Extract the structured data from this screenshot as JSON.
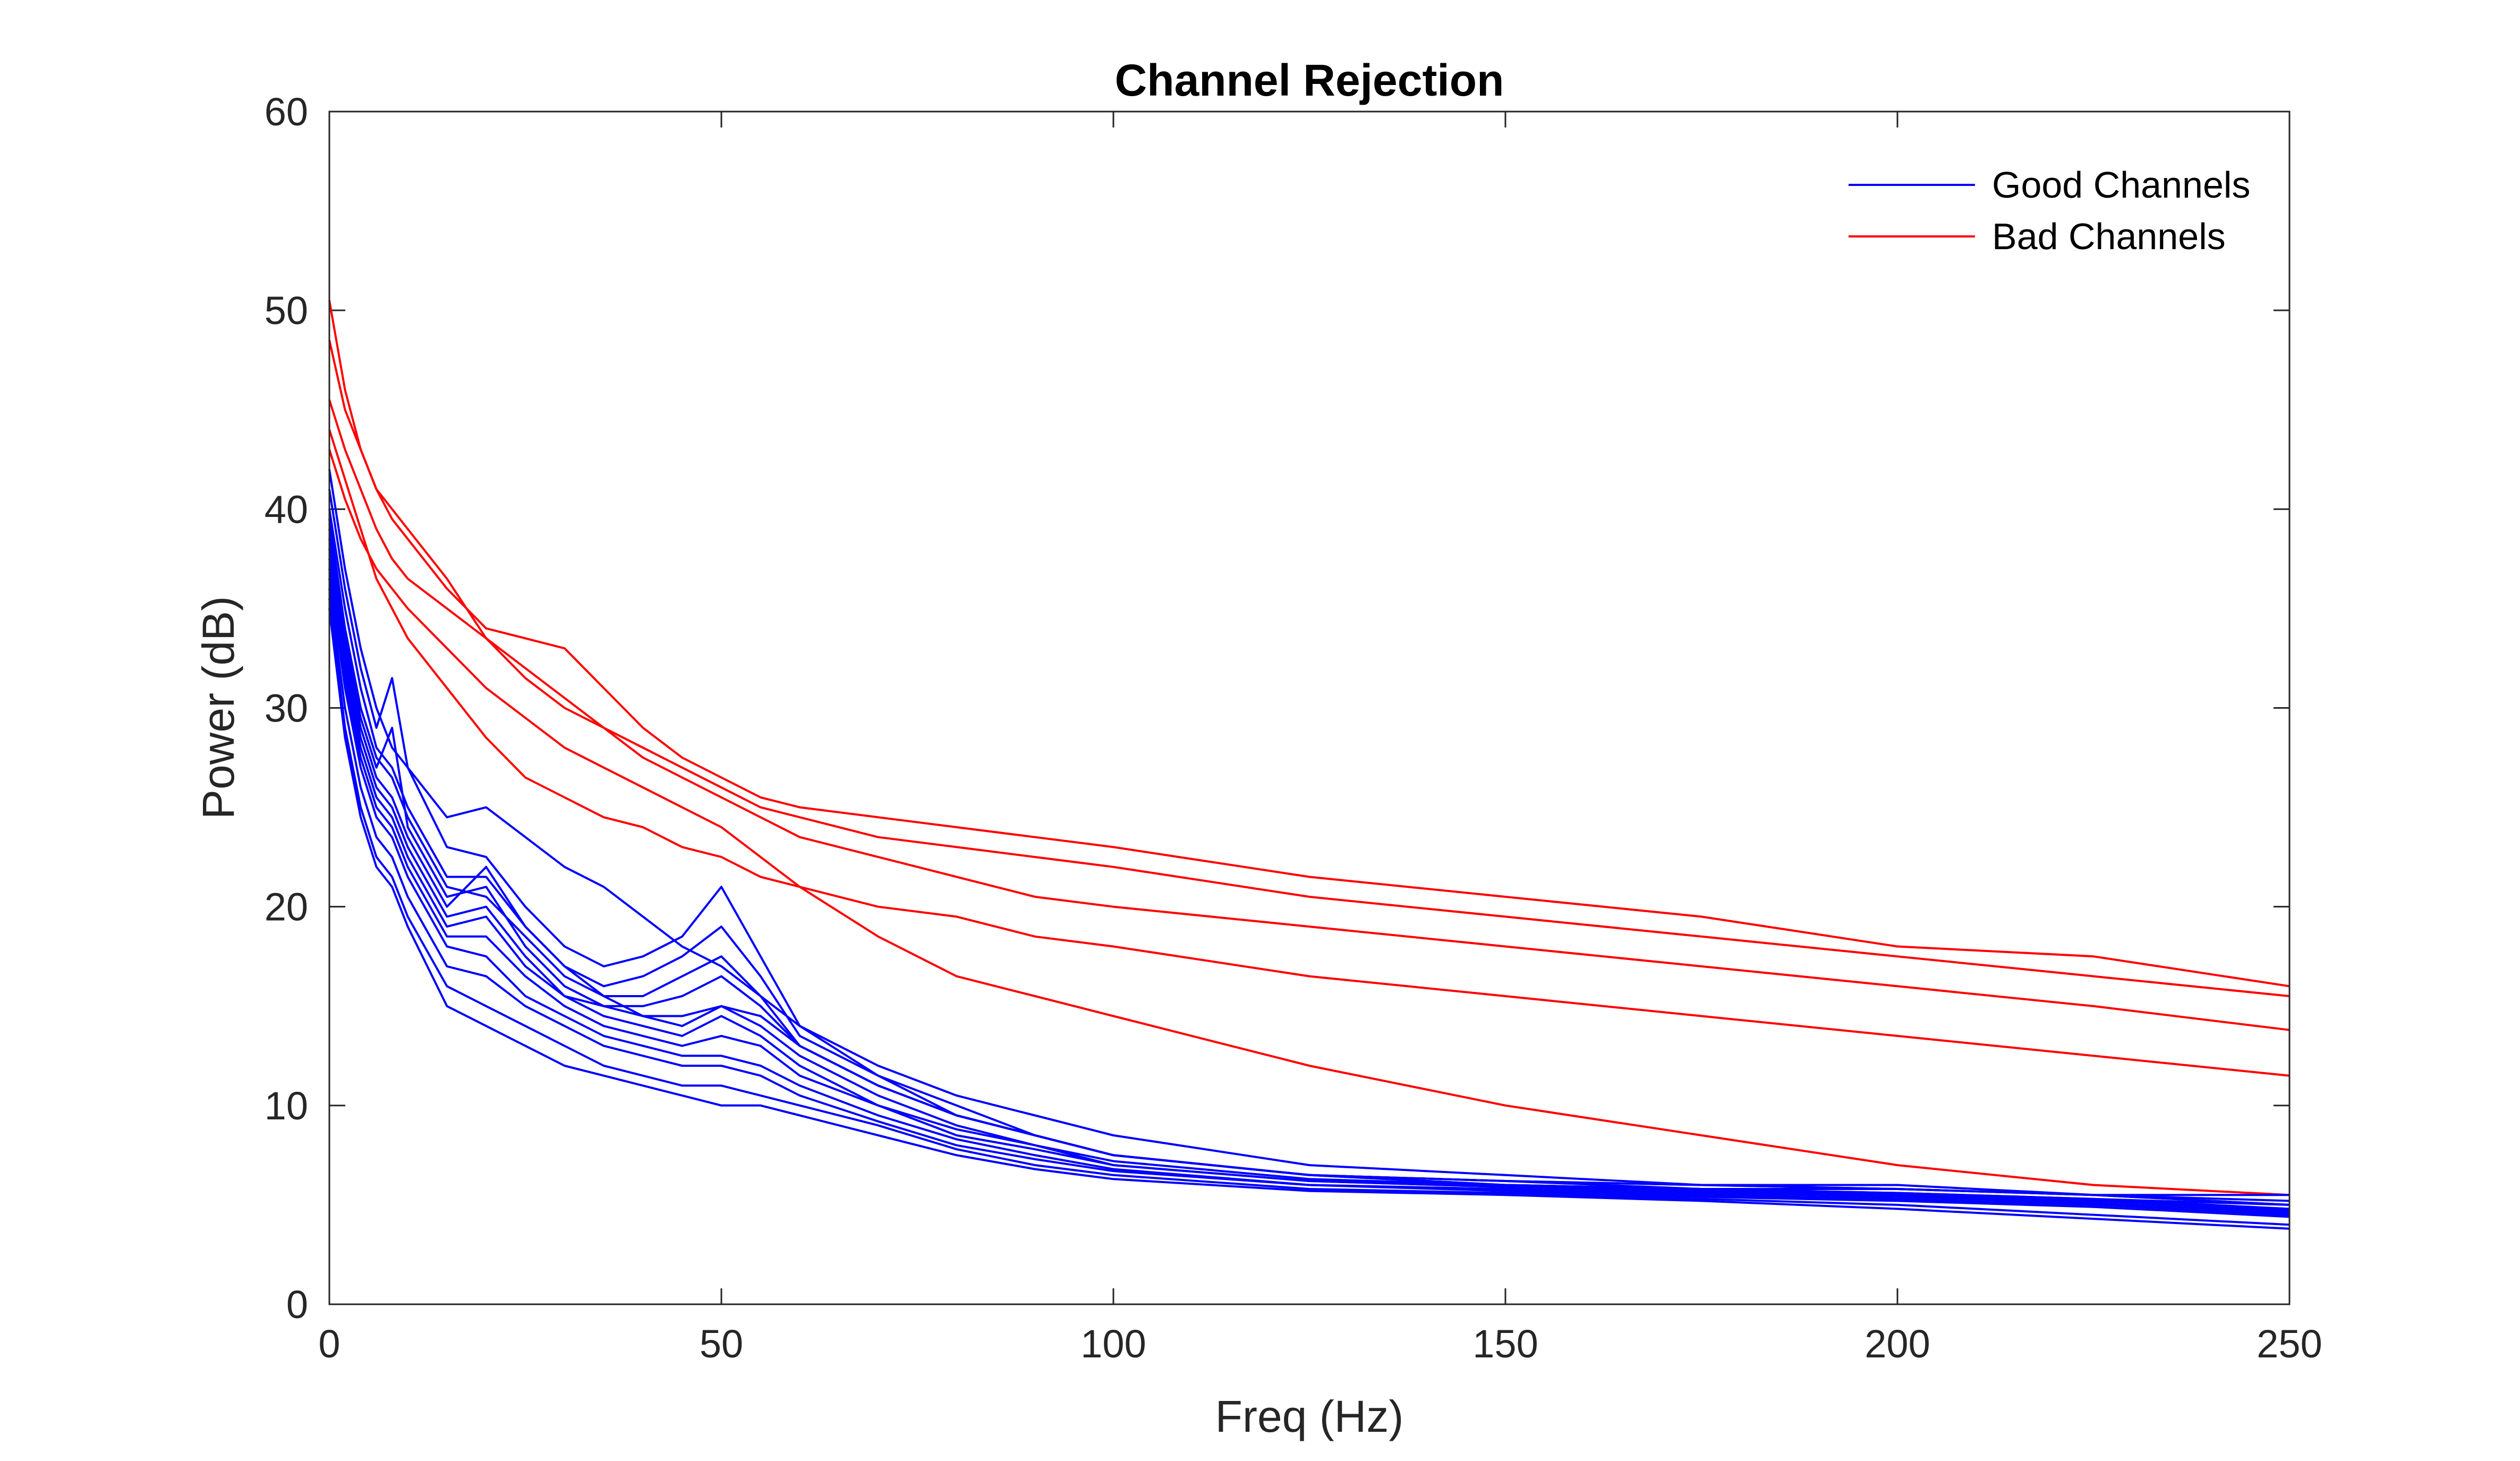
{
  "chart_data": {
    "type": "line",
    "title": "Channel Rejection",
    "xlabel": "Freq (Hz)",
    "ylabel": "Power (dB)",
    "xlim": [
      0,
      250
    ],
    "ylim": [
      0,
      60
    ],
    "xticks": [
      0,
      50,
      100,
      150,
      200,
      250
    ],
    "yticks": [
      0,
      10,
      20,
      30,
      40,
      50,
      60
    ],
    "xtick_labels": [
      "0",
      "50",
      "100",
      "150",
      "200",
      "250"
    ],
    "ytick_labels": [
      "0",
      "10",
      "20",
      "30",
      "40",
      "50",
      "60"
    ],
    "grid": false,
    "legend": {
      "position": "top-right",
      "entries": [
        {
          "label": "Good Channels",
          "color": "#0000ff"
        },
        {
          "label": "Bad Channels",
          "color": "#ff0000"
        }
      ]
    },
    "colors": {
      "good": "#0000ff",
      "bad": "#ff0000",
      "axes": "#262626"
    },
    "x": [
      0,
      2,
      4,
      6,
      8,
      10,
      15,
      20,
      25,
      30,
      35,
      40,
      45,
      50,
      55,
      60,
      70,
      80,
      90,
      100,
      125,
      150,
      175,
      200,
      225,
      250
    ],
    "series": [
      {
        "group": "Bad Channels",
        "values": [
          50.5,
          46.0,
          43.0,
          41.0,
          39.5,
          38.5,
          36.0,
          34.0,
          33.5,
          33.0,
          31.0,
          29.0,
          27.5,
          26.5,
          25.5,
          25.0,
          24.5,
          24.0,
          23.5,
          23.0,
          21.5,
          20.5,
          19.5,
          18.0,
          17.5,
          16.0
        ]
      },
      {
        "group": "Bad Channels",
        "values": [
          48.5,
          45.0,
          43.0,
          41.0,
          40.0,
          39.0,
          36.5,
          33.5,
          31.5,
          30.0,
          29.0,
          28.0,
          27.0,
          26.0,
          25.0,
          24.5,
          23.5,
          23.0,
          22.5,
          22.0,
          20.5,
          19.5,
          18.5,
          17.5,
          16.5,
          15.5
        ]
      },
      {
        "group": "Bad Channels",
        "values": [
          45.5,
          43.0,
          41.0,
          39.0,
          37.5,
          36.5,
          35.0,
          33.5,
          32.0,
          30.5,
          29.0,
          27.5,
          26.5,
          25.5,
          24.5,
          23.5,
          22.5,
          21.5,
          20.5,
          20.0,
          19.0,
          18.0,
          17.0,
          16.0,
          15.0,
          13.8
        ]
      },
      {
        "group": "Bad Channels",
        "values": [
          44.0,
          41.5,
          39.0,
          36.5,
          35.0,
          33.5,
          31.0,
          28.5,
          26.5,
          25.5,
          24.5,
          24.0,
          23.0,
          22.5,
          21.5,
          21.0,
          20.0,
          19.5,
          18.5,
          18.0,
          16.5,
          15.5,
          14.5,
          13.5,
          12.5,
          11.5
        ]
      },
      {
        "group": "Bad Channels",
        "values": [
          43.0,
          40.5,
          38.5,
          37.0,
          36.0,
          35.0,
          33.0,
          31.0,
          29.5,
          28.0,
          27.0,
          26.0,
          25.0,
          24.0,
          22.5,
          21.0,
          18.5,
          16.5,
          15.5,
          14.5,
          12.0,
          10.0,
          8.5,
          7.0,
          6.0,
          5.5
        ]
      },
      {
        "group": "Good Channels",
        "values": [
          42.0,
          37.0,
          33.0,
          30.0,
          28.0,
          27.0,
          24.5,
          25.0,
          23.5,
          22.0,
          21.0,
          19.5,
          18.0,
          17.0,
          15.5,
          14.0,
          12.0,
          10.5,
          9.5,
          8.5,
          7.0,
          6.5,
          6.0,
          6.0,
          5.5,
          5.5
        ]
      },
      {
        "group": "Good Channels",
        "values": [
          41.0,
          36.0,
          32.0,
          29.0,
          31.5,
          27.0,
          23.0,
          22.5,
          20.0,
          18.0,
          17.0,
          17.5,
          18.5,
          21.0,
          17.5,
          14.0,
          11.5,
          9.5,
          8.5,
          7.5,
          6.5,
          6.2,
          6.0,
          5.8,
          5.5,
          5.2
        ]
      },
      {
        "group": "Good Channels",
        "values": [
          40.0,
          35.0,
          31.0,
          28.0,
          27.0,
          25.0,
          21.5,
          21.5,
          19.0,
          17.0,
          16.0,
          16.5,
          17.5,
          19.0,
          16.5,
          13.5,
          11.5,
          10.0,
          8.5,
          7.5,
          6.5,
          6.2,
          6.0,
          5.8,
          5.5,
          5.0
        ]
      },
      {
        "group": "Good Channels",
        "values": [
          39.5,
          34.0,
          30.0,
          27.5,
          26.5,
          24.5,
          21.0,
          20.5,
          18.5,
          16.5,
          15.5,
          15.5,
          16.5,
          17.5,
          15.5,
          13.0,
          11.0,
          9.5,
          8.5,
          7.5,
          6.5,
          6.2,
          5.8,
          5.8,
          5.5,
          5.0
        ]
      },
      {
        "group": "Good Channels",
        "values": [
          39.0,
          33.5,
          29.5,
          27.0,
          29.0,
          24.0,
          20.5,
          21.0,
          18.0,
          16.0,
          15.0,
          15.0,
          15.5,
          16.5,
          15.0,
          13.0,
          11.0,
          9.5,
          8.5,
          7.5,
          6.5,
          6.0,
          5.8,
          5.6,
          5.3,
          5.0
        ]
      },
      {
        "group": "Good Channels",
        "values": [
          38.5,
          33.0,
          29.0,
          26.5,
          25.5,
          23.5,
          20.0,
          22.0,
          19.0,
          17.0,
          15.5,
          14.5,
          14.5,
          15.0,
          14.5,
          13.0,
          11.0,
          9.5,
          8.5,
          7.5,
          6.5,
          6.0,
          5.8,
          5.6,
          5.3,
          4.8
        ]
      },
      {
        "group": "Good Channels",
        "values": [
          38.0,
          32.5,
          28.5,
          26.0,
          25.0,
          23.0,
          19.5,
          20.0,
          17.5,
          15.5,
          15.0,
          14.5,
          14.0,
          15.0,
          14.0,
          12.5,
          10.5,
          9.0,
          8.0,
          7.2,
          6.3,
          6.0,
          5.8,
          5.5,
          5.2,
          4.8
        ]
      },
      {
        "group": "Good Channels",
        "values": [
          37.5,
          32.0,
          28.0,
          25.5,
          24.5,
          22.5,
          19.0,
          19.5,
          17.0,
          15.5,
          14.5,
          14.0,
          13.5,
          14.5,
          13.5,
          12.0,
          10.0,
          8.8,
          8.0,
          7.0,
          6.2,
          5.9,
          5.7,
          5.5,
          5.2,
          4.7
        ]
      },
      {
        "group": "Good Channels",
        "values": [
          37.0,
          31.5,
          27.5,
          25.0,
          24.0,
          22.0,
          18.5,
          18.5,
          16.5,
          15.0,
          14.0,
          13.5,
          13.0,
          13.5,
          13.0,
          11.5,
          10.0,
          8.5,
          7.8,
          7.0,
          6.2,
          5.9,
          5.6,
          5.4,
          5.1,
          4.6
        ]
      },
      {
        "group": "Good Channels",
        "values": [
          36.5,
          31.0,
          27.0,
          24.5,
          23.5,
          21.5,
          18.0,
          17.5,
          15.5,
          14.5,
          13.5,
          13.0,
          12.5,
          12.5,
          12.0,
          11.0,
          9.5,
          8.3,
          7.5,
          6.8,
          6.0,
          5.8,
          5.5,
          5.3,
          5.0,
          4.5
        ]
      },
      {
        "group": "Good Channels",
        "values": [
          36.0,
          30.0,
          26.0,
          23.5,
          22.5,
          20.5,
          17.0,
          16.5,
          15.0,
          14.0,
          13.0,
          12.5,
          12.0,
          12.0,
          11.5,
          10.5,
          9.2,
          8.0,
          7.3,
          6.7,
          6.0,
          5.7,
          5.4,
          5.2,
          4.9,
          4.4
        ]
      },
      {
        "group": "Good Channels",
        "values": [
          35.5,
          29.0,
          25.0,
          22.5,
          21.5,
          19.5,
          16.0,
          15.0,
          14.0,
          13.0,
          12.0,
          11.5,
          11.0,
          11.0,
          10.5,
          10.0,
          9.0,
          7.8,
          7.0,
          6.5,
          5.8,
          5.6,
          5.3,
          5.0,
          4.5,
          4.0
        ]
      },
      {
        "group": "Good Channels",
        "values": [
          35.0,
          28.5,
          24.5,
          22.0,
          21.0,
          19.0,
          15.0,
          14.0,
          13.0,
          12.0,
          11.5,
          11.0,
          10.5,
          10.0,
          10.0,
          9.5,
          8.5,
          7.5,
          6.8,
          6.3,
          5.7,
          5.5,
          5.2,
          4.8,
          4.3,
          3.8
        ]
      }
    ]
  }
}
